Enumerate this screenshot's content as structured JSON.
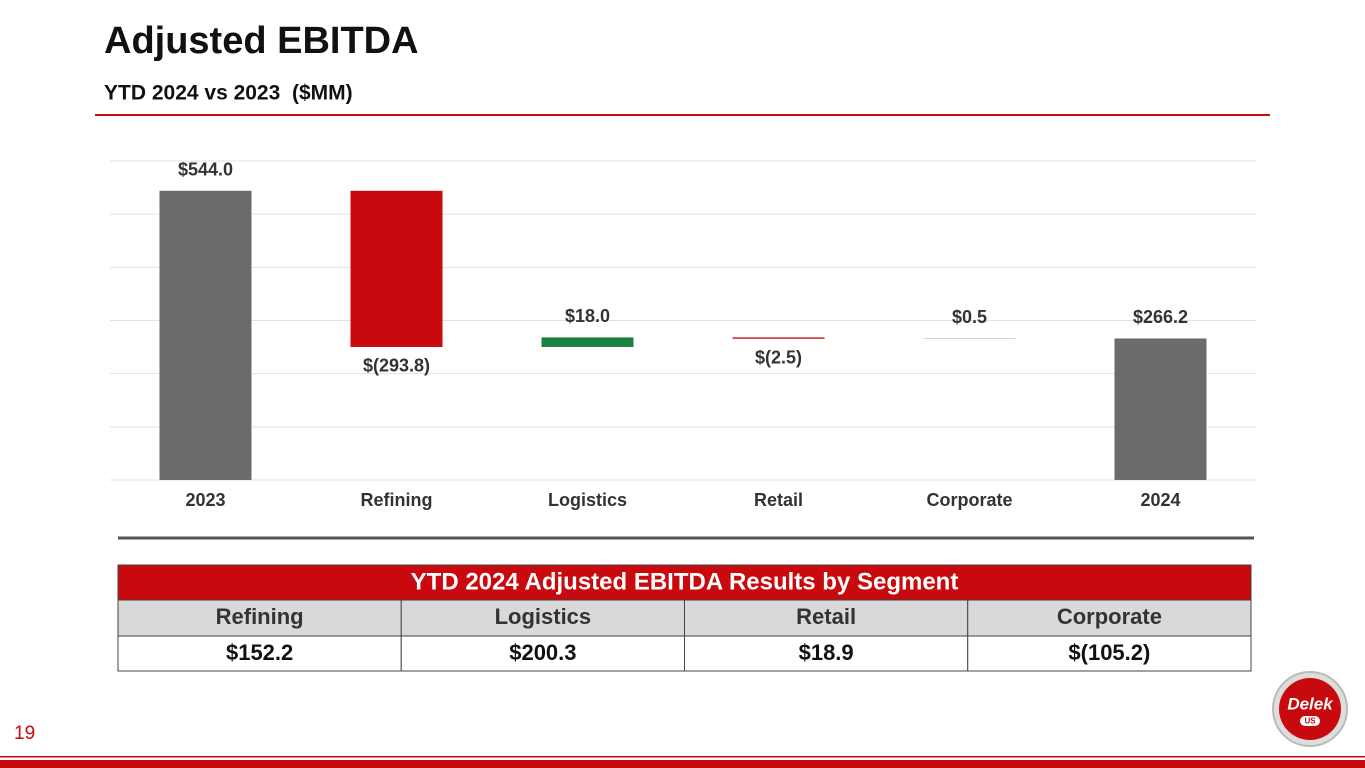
{
  "title": "Adjusted EBITDA",
  "subtitle": "YTD 2024 vs 2023  ($MM)",
  "page_number": "19",
  "logo": {
    "name": "Delek",
    "sub": "US"
  },
  "chart_data": {
    "type": "waterfall",
    "categories": [
      "2023",
      "Refining",
      "Logistics",
      "Retail",
      "Corporate",
      "2024"
    ],
    "values": [
      544.0,
      -293.8,
      18.0,
      -2.5,
      0.5,
      266.2
    ],
    "value_labels": [
      "$544.0",
      "$(293.8)",
      "$18.0",
      "$(2.5)",
      "$0.5",
      "$266.2"
    ],
    "colors": [
      "#6b6b6b",
      "#c8090d",
      "#1a8140",
      "#c8090d",
      "#1a8140",
      "#6b6b6b"
    ],
    "ylim": [
      0,
      600
    ],
    "yticks": [
      0,
      100,
      200,
      300,
      400,
      500,
      600
    ],
    "grid": true
  },
  "table": {
    "title": "YTD 2024 Adjusted EBITDA Results by Segment",
    "header": [
      "Refining",
      "Logistics",
      "Retail",
      "Corporate"
    ],
    "rows": [
      [
        "$152.2",
        "$200.3",
        "$18.9",
        "$(105.2)"
      ]
    ]
  }
}
